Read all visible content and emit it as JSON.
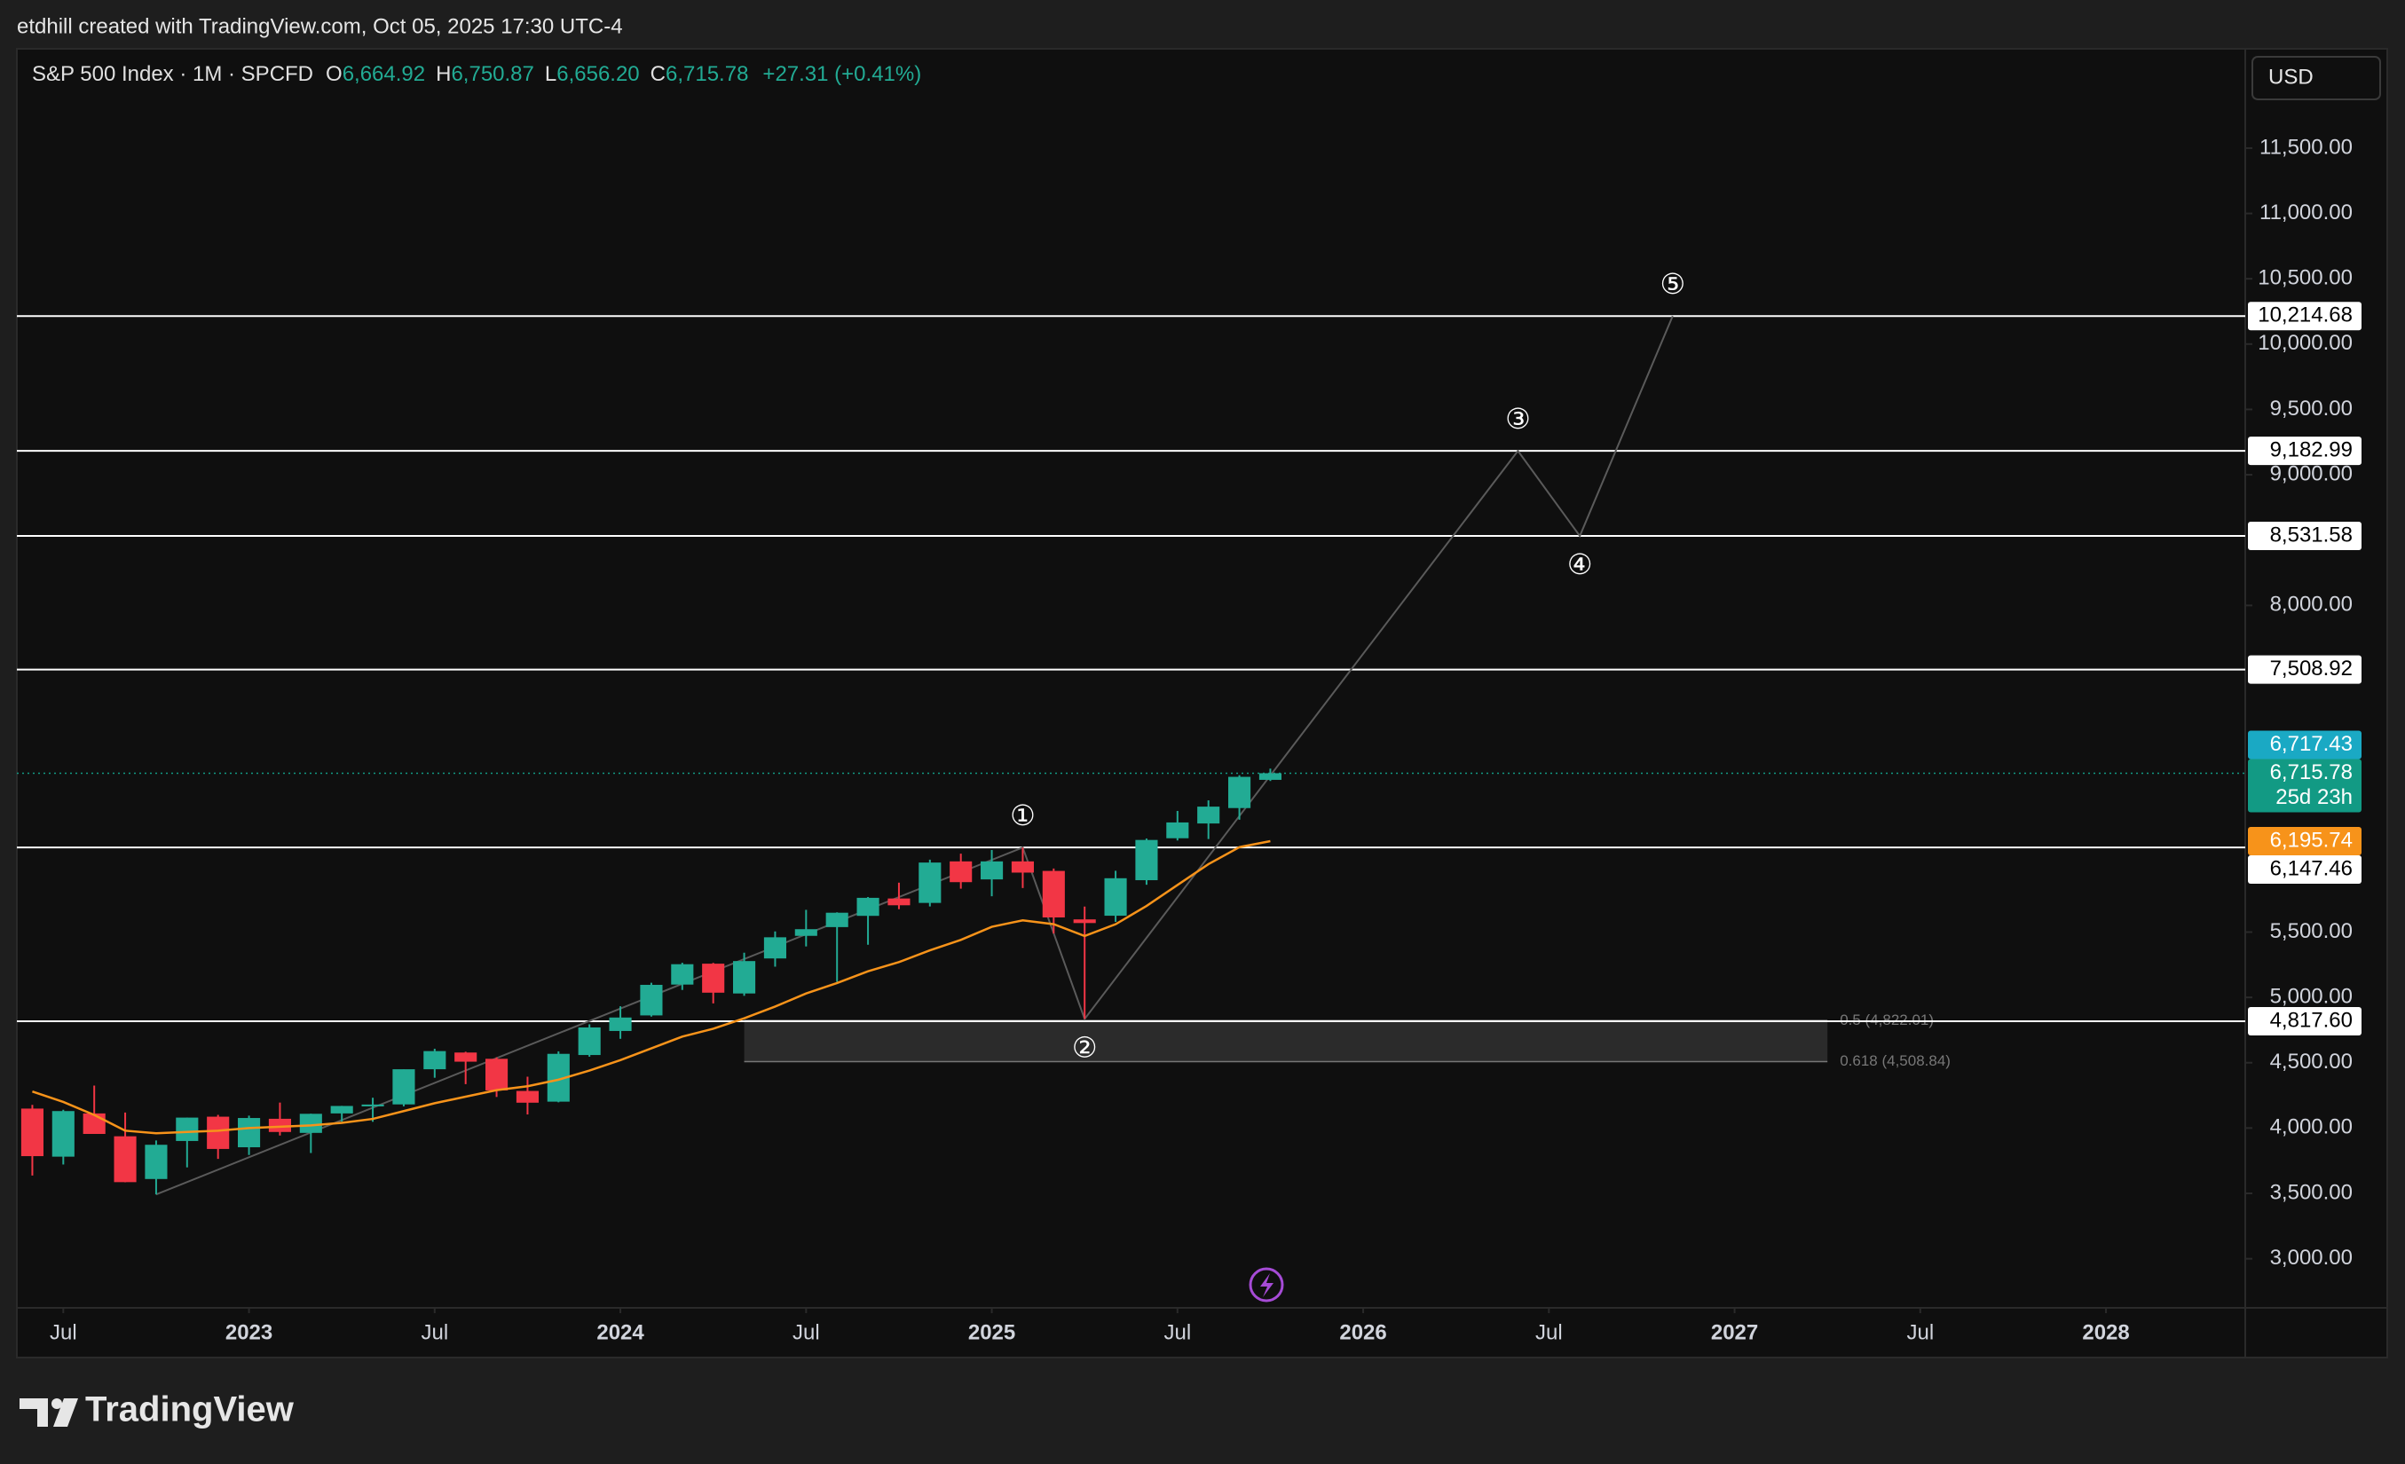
{
  "header": "etdhill created with TradingView.com, Oct 05, 2025 17:30 UTC-4",
  "brand": "TradingView",
  "chart_data": {
    "type": "candlestick",
    "title": "S&P 500 Index · 1M · SPCFD",
    "ohlc_legend": [
      {
        "key": "O",
        "value": "6,664.92"
      },
      {
        "key": "H",
        "value": "6,750.87"
      },
      {
        "key": "L",
        "value": "6,656.20"
      },
      {
        "key": "C",
        "value": "6,715.78"
      }
    ],
    "change": "+27.31 (+0.41%)",
    "currency": "USD",
    "up_color": "#22ab94",
    "down_color": "#f23645",
    "x": [
      "2022-06",
      "2022-07",
      "2022-08",
      "2022-09",
      "2022-10",
      "2022-11",
      "2022-12",
      "2023-01",
      "2023-02",
      "2023-03",
      "2023-04",
      "2023-05",
      "2023-06",
      "2023-07",
      "2023-08",
      "2023-09",
      "2023-10",
      "2023-11",
      "2023-12",
      "2024-01",
      "2024-02",
      "2024-03",
      "2024-04",
      "2024-05",
      "2024-06",
      "2024-07",
      "2024-08",
      "2024-09",
      "2024-10",
      "2024-11",
      "2024-12",
      "2025-01",
      "2025-02",
      "2025-03",
      "2025-04",
      "2025-05",
      "2025-06",
      "2025-07",
      "2025-08",
      "2025-09",
      "2025-10"
    ],
    "open": [
      4149,
      3781,
      4112,
      3937,
      3610,
      3901,
      4087,
      3853,
      4071,
      3963,
      4112,
      4166,
      4181,
      4450,
      4578,
      4530,
      4284,
      4202,
      4559,
      4743,
      4862,
      5098,
      5258,
      5030,
      5298,
      5471,
      5538,
      5624,
      5757,
      5723,
      6041,
      5903,
      6041,
      5968,
      5597,
      5625,
      5897,
      6218,
      6331,
      6449,
      6664.92
    ],
    "high": [
      4177,
      4140,
      4325,
      4119,
      3905,
      4080,
      4101,
      4095,
      4195,
      4110,
      4170,
      4232,
      4449,
      4607,
      4584,
      4541,
      4393,
      4587,
      4794,
      4932,
      5112,
      5265,
      5264,
      5342,
      5505,
      5670,
      5651,
      5768,
      5878,
      6054,
      6100,
      6128,
      6147,
      5986,
      5695,
      5969,
      6216,
      6427,
      6508,
      6700,
      6750.87
    ],
    "low": [
      3637,
      3721,
      3955,
      3585,
      3492,
      3699,
      3764,
      3794,
      3943,
      3809,
      4049,
      4048,
      4166,
      4385,
      4336,
      4238,
      4104,
      4197,
      4546,
      4683,
      4853,
      5057,
      4954,
      5012,
      5235,
      5390,
      5120,
      5403,
      5675,
      5696,
      5832,
      5774,
      5837,
      5489,
      4835,
      5578,
      5862,
      6201,
      6212,
      6360,
      6656.2
    ],
    "close": [
      3785,
      4130,
      3955,
      3586,
      3872,
      4080,
      3840,
      4077,
      3970,
      4109,
      4169,
      4180,
      4450,
      4589,
      4508,
      4288,
      4194,
      4568,
      4770,
      4846,
      5096,
      5254,
      5036,
      5278,
      5460,
      5522,
      5648,
      5762,
      5705,
      6032,
      5882,
      6041,
      5955,
      5612,
      5569,
      5912,
      6205,
      6339,
      6460,
      6688,
      6715.78
    ],
    "moving_average": {
      "color": "#f7931a",
      "values": [
        4280,
        4200,
        4100,
        3980,
        3960,
        3970,
        3980,
        4000,
        4010,
        4020,
        4040,
        4070,
        4130,
        4190,
        4240,
        4290,
        4320,
        4370,
        4440,
        4520,
        4610,
        4700,
        4760,
        4840,
        4930,
        5030,
        5110,
        5200,
        5270,
        5360,
        5440,
        5540,
        5590,
        5560,
        5470,
        5560,
        5700,
        5860,
        6020,
        6150,
        6195.74
      ]
    },
    "levels": [
      {
        "value": 10214.68,
        "label": "10,214.68"
      },
      {
        "value": 9182.99,
        "label": "9,182.99"
      },
      {
        "value": 8531.58,
        "label": "8,531.58"
      },
      {
        "value": 7508.92,
        "label": "7,508.92"
      },
      {
        "value": 6147.46,
        "label": "6,147.46"
      },
      {
        "value": 4817.6,
        "label": "4,817.60"
      }
    ],
    "price_labels": [
      {
        "value": 6717.43,
        "label": "6,717.43",
        "color": "#1aa9c4"
      },
      {
        "value": 6715.78,
        "label": "6,715.78",
        "sublabel": "25d 23h",
        "color": "#129a84"
      },
      {
        "value": 6195.74,
        "label": "6,195.74",
        "color": "#f7931a"
      }
    ],
    "fib": {
      "x": [
        "2024-05",
        "2027-04"
      ],
      "levels": [
        {
          "value": 4822.01,
          "label": "0.5 (4,822.01)"
        },
        {
          "value": 4508.84,
          "label": "0.618 (4,508.84)"
        }
      ]
    },
    "waves": {
      "x": [
        "2022-10",
        "2025-02",
        "2025-04",
        "2026-06",
        "2026-08",
        "2026-11"
      ],
      "values": [
        3492,
        6147,
        4835,
        9182.99,
        8531.58,
        10214.68
      ],
      "labels": [
        null,
        "①",
        "②",
        "③",
        "④",
        "⑤"
      ]
    },
    "xlim": [
      "2022-06",
      "2028-05"
    ],
    "xticks": [
      {
        "value": "2022-07",
        "label": "Jul"
      },
      {
        "value": "2023-01",
        "label": "2023"
      },
      {
        "value": "2023-07",
        "label": "Jul"
      },
      {
        "value": "2024-01",
        "label": "2024"
      },
      {
        "value": "2024-07",
        "label": "Jul"
      },
      {
        "value": "2025-01",
        "label": "2025"
      },
      {
        "value": "2025-07",
        "label": "Jul"
      },
      {
        "value": "2026-01",
        "label": "2026"
      },
      {
        "value": "2026-07",
        "label": "Jul"
      },
      {
        "value": "2027-01",
        "label": "2027"
      },
      {
        "value": "2027-07",
        "label": "Jul"
      },
      {
        "value": "2028-01",
        "label": "2028"
      }
    ],
    "ylim": [
      2624,
      12260
    ],
    "yticks": [
      {
        "value": 3000,
        "label": "3,000.00"
      },
      {
        "value": 3500,
        "label": "3,500.00"
      },
      {
        "value": 4000,
        "label": "4,000.00"
      },
      {
        "value": 4500,
        "label": "4,500.00"
      },
      {
        "value": 5000,
        "label": "5,000.00"
      },
      {
        "value": 5500,
        "label": "5,500.00"
      },
      {
        "value": 8000,
        "label": "8,000.00"
      },
      {
        "value": 9000,
        "label": "9,000.00"
      },
      {
        "value": 9500,
        "label": "9,500.00"
      },
      {
        "value": 10000,
        "label": "10,000.00"
      },
      {
        "value": 10500,
        "label": "10,500.00"
      },
      {
        "value": 11000,
        "label": "11,000.00"
      },
      {
        "value": 11500,
        "label": "11,500.00"
      }
    ]
  }
}
